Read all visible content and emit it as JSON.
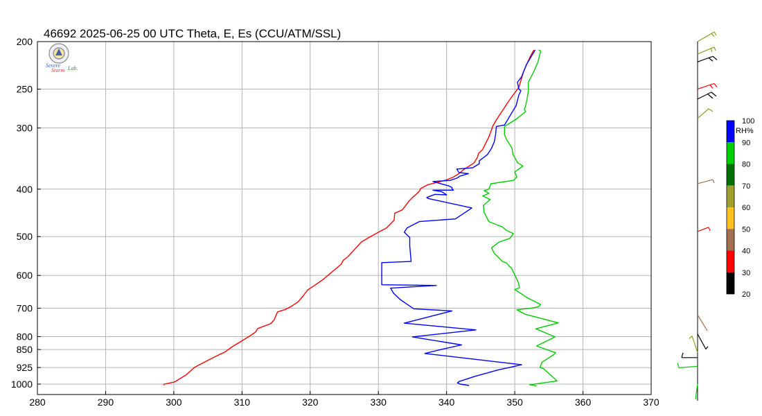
{
  "chart_data": {
    "type": "line",
    "title": "46692  2025-06-25 00 UTC  Theta, E, Es (CCU/ATM/SSL)",
    "x_ticks": [
      280,
      290,
      300,
      310,
      320,
      330,
      340,
      350,
      360,
      370
    ],
    "y_ticks": [
      200,
      250,
      300,
      400,
      500,
      600,
      700,
      800,
      850,
      925,
      1000
    ],
    "xlim": [
      280,
      370
    ],
    "ylim": [
      1000,
      200
    ],
    "y_scale": "log",
    "grid": true,
    "series": [
      {
        "color": "#ff0000",
        "points": [
          [
            298.5,
            1005
          ],
          [
            298.6,
            1000
          ],
          [
            300.1,
            990
          ],
          [
            301.8,
            958
          ],
          [
            303.0,
            925
          ],
          [
            304.5,
            902
          ],
          [
            306.2,
            877
          ],
          [
            307.5,
            860
          ],
          [
            308.2,
            846
          ],
          [
            308.5,
            840
          ],
          [
            311.0,
            800
          ],
          [
            312.0,
            783
          ],
          [
            312.3,
            770
          ],
          [
            314.2,
            753
          ],
          [
            314.7,
            740
          ],
          [
            315.2,
            713
          ],
          [
            315.5,
            710
          ],
          [
            316.4,
            704
          ],
          [
            317.3,
            693
          ],
          [
            318.2,
            680
          ],
          [
            319.0,
            660
          ],
          [
            319.6,
            643
          ],
          [
            320.2,
            635
          ],
          [
            321.8,
            613
          ],
          [
            324.5,
            570
          ],
          [
            324.9,
            558
          ],
          [
            325.5,
            550
          ],
          [
            327.5,
            513
          ],
          [
            328.5,
            503
          ],
          [
            330.0,
            490
          ],
          [
            331.2,
            480
          ],
          [
            332.3,
            463
          ],
          [
            332.4,
            448
          ],
          [
            333.5,
            441
          ],
          [
            334.0,
            432
          ],
          [
            334.5,
            423
          ],
          [
            335.0,
            416
          ],
          [
            335.6,
            409
          ],
          [
            336.0,
            404
          ],
          [
            336.2,
            399
          ],
          [
            337.2,
            392
          ],
          [
            338.8,
            387
          ],
          [
            340.0,
            383
          ],
          [
            341.0,
            378
          ],
          [
            341.8,
            372
          ],
          [
            342.5,
            365
          ],
          [
            344.0,
            354
          ],
          [
            344.5,
            345
          ],
          [
            344.7,
            338
          ],
          [
            345.3,
            332
          ],
          [
            345.8,
            321
          ],
          [
            346.2,
            313
          ],
          [
            346.5,
            305
          ],
          [
            346.8,
            297
          ],
          [
            347.3,
            289
          ],
          [
            349.0,
            266
          ],
          [
            349.5,
            260
          ],
          [
            350.6,
            248
          ],
          [
            351.3,
            230
          ],
          [
            352.3,
            214
          ],
          [
            352.8,
            208
          ]
        ]
      },
      {
        "color": "#0000ff",
        "points": [
          [
            343.3,
            1007
          ],
          [
            342.0,
            1000
          ],
          [
            341.6,
            994
          ],
          [
            341.8,
            988
          ],
          [
            344.2,
            964
          ],
          [
            347.5,
            936
          ],
          [
            351.0,
            913
          ],
          [
            336.8,
            866
          ],
          [
            339.2,
            850
          ],
          [
            342.2,
            832
          ],
          [
            335.0,
            801
          ],
          [
            344.3,
            775
          ],
          [
            333.8,
            751
          ],
          [
            340.8,
            709
          ],
          [
            335.2,
            702
          ],
          [
            334.0,
            684
          ],
          [
            333.2,
            672
          ],
          [
            332.2,
            652
          ],
          [
            331.8,
            637
          ],
          [
            338.5,
            629
          ],
          [
            330.5,
            627
          ],
          [
            330.5,
            565
          ],
          [
            334.8,
            562
          ],
          [
            334.6,
            522
          ],
          [
            334.6,
            502
          ],
          [
            333.8,
            490
          ],
          [
            334.2,
            480
          ],
          [
            336.0,
            466
          ],
          [
            341.3,
            460
          ],
          [
            343.7,
            437
          ],
          [
            337.3,
            418
          ],
          [
            337.1,
            416
          ],
          [
            338.3,
            410
          ],
          [
            340.0,
            411
          ],
          [
            339.3,
            405
          ],
          [
            338.0,
            402
          ],
          [
            341.0,
            402
          ],
          [
            340.8,
            399
          ],
          [
            340.8,
            397
          ],
          [
            340.3,
            394
          ],
          [
            338.0,
            386
          ],
          [
            340.5,
            384
          ],
          [
            341.5,
            380
          ],
          [
            342.0,
            376
          ],
          [
            343.2,
            372
          ],
          [
            341.8,
            370
          ],
          [
            341.5,
            364
          ],
          [
            343.8,
            362
          ],
          [
            344.8,
            355
          ],
          [
            344.8,
            350
          ],
          [
            346.0,
            340
          ],
          [
            346.6,
            330
          ],
          [
            347.0,
            320
          ],
          [
            347.2,
            309
          ],
          [
            347.3,
            298
          ],
          [
            348.5,
            296
          ],
          [
            350.2,
            270
          ],
          [
            350.6,
            257
          ],
          [
            350.9,
            252
          ],
          [
            350.6,
            250
          ],
          [
            350.4,
            242
          ],
          [
            351.0,
            236
          ],
          [
            351.7,
            223
          ],
          [
            352.9,
            209
          ],
          [
            353.0,
            208
          ]
        ]
      },
      {
        "color": "#00cc00",
        "points": [
          [
            353.2,
            1008
          ],
          [
            352.2,
            1003
          ],
          [
            356.2,
            985
          ],
          [
            355.5,
            965
          ],
          [
            354.2,
            930
          ],
          [
            353.7,
            925
          ],
          [
            354.0,
            902
          ],
          [
            355.7,
            871
          ],
          [
            356.0,
            863
          ],
          [
            353.2,
            836
          ],
          [
            355.9,
            801
          ],
          [
            353.1,
            771
          ],
          [
            356.4,
            750
          ],
          [
            351.5,
            720
          ],
          [
            350.3,
            705
          ],
          [
            352.4,
            700
          ],
          [
            353.5,
            695
          ],
          [
            353.8,
            688
          ],
          [
            351.8,
            666
          ],
          [
            350.0,
            641
          ],
          [
            350.7,
            636
          ],
          [
            350.5,
            619
          ],
          [
            349.5,
            579
          ],
          [
            349.2,
            575
          ],
          [
            348.8,
            566
          ],
          [
            348.2,
            562
          ],
          [
            347.0,
            541
          ],
          [
            346.6,
            527
          ],
          [
            347.7,
            513
          ],
          [
            349.3,
            504
          ],
          [
            349.8,
            493
          ],
          [
            348.8,
            486
          ],
          [
            348.2,
            478
          ],
          [
            346.2,
            466
          ],
          [
            345.5,
            446
          ],
          [
            345.4,
            432
          ],
          [
            346.4,
            420
          ],
          [
            345.3,
            413
          ],
          [
            346.2,
            408
          ],
          [
            345.5,
            403
          ],
          [
            346.2,
            400
          ],
          [
            346.5,
            390
          ],
          [
            349.8,
            384
          ],
          [
            350.3,
            378
          ],
          [
            350.0,
            369
          ],
          [
            351.2,
            359
          ],
          [
            350.4,
            353
          ],
          [
            349.7,
            339
          ],
          [
            349.6,
            330
          ],
          [
            348.8,
            317
          ],
          [
            348.5,
            310
          ],
          [
            348.5,
            298
          ],
          [
            350.2,
            288
          ],
          [
            351.0,
            282
          ],
          [
            351.6,
            278
          ],
          [
            351.4,
            275
          ],
          [
            351.6,
            270
          ],
          [
            351.8,
            262
          ],
          [
            352.0,
            252
          ],
          [
            352.0,
            242
          ],
          [
            352.8,
            230
          ],
          [
            353.4,
            220
          ],
          [
            353.8,
            209
          ],
          [
            353.5,
            208
          ]
        ]
      }
    ]
  },
  "logo": {
    "line1": "Severe",
    "line2": "Storm",
    "line3": "Lab."
  },
  "colorbar": {
    "title": "RH%",
    "tick_labels": [
      "100",
      "90",
      "80",
      "70",
      "60",
      "50",
      "40",
      "30",
      "20"
    ],
    "colors": [
      "#0000ff",
      "#00d000",
      "#007000",
      "#a0a030",
      "#ffc020",
      "#a07050",
      "#ff0000",
      "#000000"
    ]
  },
  "wind_barbs": [
    {
      "p": 200,
      "color": "#8aa020"
    },
    {
      "p": 212,
      "color": "#8aa020"
    },
    {
      "p": 220,
      "color": "#000000"
    },
    {
      "p": 250,
      "color": "#ff0000"
    },
    {
      "p": 262,
      "color": "#000000"
    },
    {
      "p": 287,
      "color": "#8aa020"
    },
    {
      "p": 390,
      "color": "#a07050"
    },
    {
      "p": 488,
      "color": "#ff0000"
    },
    {
      "p": 722,
      "color": "#a07050"
    },
    {
      "p": 790,
      "color": "#000000"
    },
    {
      "p": 862,
      "color": "#8aa020"
    },
    {
      "p": 883,
      "color": "#000000"
    },
    {
      "p": 920,
      "color": "#00cc00"
    },
    {
      "p": 1000,
      "color": "#00cc00"
    }
  ]
}
